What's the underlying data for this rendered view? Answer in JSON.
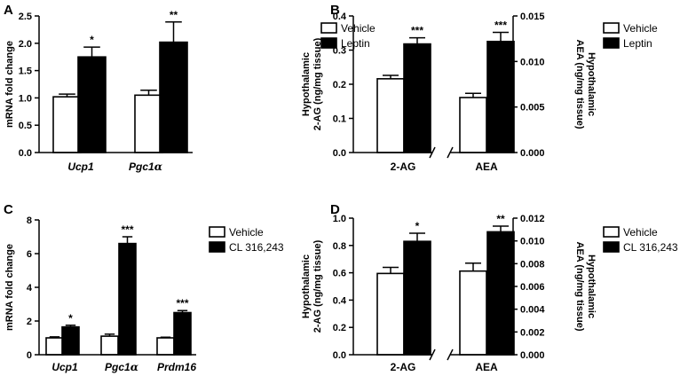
{
  "chart_data": [
    {
      "panel": "A",
      "type": "bar",
      "categories": [
        "Ucp1",
        "Pgc1α"
      ],
      "category_style": "bold-italic",
      "ylabel": "mRNA fold change",
      "ylim": [
        0,
        2.5
      ],
      "yticks": [
        "0.0",
        "0.5",
        "1.0",
        "1.5",
        "2.0",
        "2.5"
      ],
      "series": [
        {
          "name": "Vehicle",
          "fill": "white",
          "values": [
            1.02,
            1.05
          ],
          "errors": [
            0.05,
            0.09
          ]
        },
        {
          "name": "Leptin",
          "fill": "black",
          "values": [
            1.75,
            2.02
          ],
          "errors": [
            0.18,
            0.37
          ]
        }
      ],
      "significance": [
        "*",
        "**"
      ]
    },
    {
      "panel": "B",
      "type": "bar",
      "categories": [
        "2-AG",
        "AEA"
      ],
      "category_style": "bold",
      "ylabel": "Hypothalamic\n2-AG (ng/mg tissue)",
      "ylim": [
        0,
        0.4
      ],
      "yticks": [
        "0.0",
        "0.1",
        "0.2",
        "0.3",
        "0.4"
      ],
      "y2label": "Hypothalamic\nAEA (ng/mg tissue)",
      "y2lim": [
        0,
        0.015
      ],
      "y2ticks": [
        "0.000",
        "0.005",
        "0.010",
        "0.015"
      ],
      "axis_break": true,
      "series": [
        {
          "name": "Vehicle",
          "fill": "white",
          "values": [
            0.216,
            0.00604
          ],
          "errors": [
            0.01,
            0.00046
          ]
        },
        {
          "name": "Leptin",
          "fill": "black",
          "values": [
            0.318,
            0.0122
          ],
          "errors": [
            0.018,
            0.001
          ]
        }
      ],
      "value_axis": [
        "y",
        "y2"
      ],
      "significance": [
        "***",
        "***"
      ]
    },
    {
      "panel": "C",
      "type": "bar",
      "categories": [
        "Ucp1",
        "Pgc1α",
        "Prdm16"
      ],
      "category_style": "bold-italic",
      "ylabel": "mRNA fold change",
      "ylim": [
        0,
        8
      ],
      "yticks": [
        "0",
        "2",
        "4",
        "6",
        "8"
      ],
      "series": [
        {
          "name": "Vehicle",
          "fill": "white",
          "values": [
            1.0,
            1.1,
            1.0
          ],
          "errors": [
            0.06,
            0.12,
            0.04
          ]
        },
        {
          "name": "CL 316,243",
          "fill": "black",
          "values": [
            1.65,
            6.6,
            2.5
          ],
          "errors": [
            0.1,
            0.4,
            0.12
          ]
        }
      ],
      "significance": [
        "*",
        "***",
        "***"
      ]
    },
    {
      "panel": "D",
      "type": "bar",
      "categories": [
        "2-AG",
        "AEA"
      ],
      "category_style": "bold",
      "ylabel": "Hypothalamic\n2-AG (ng/mg tissue)",
      "ylim": [
        0,
        1.0
      ],
      "yticks": [
        "0.0",
        "0.2",
        "0.4",
        "0.6",
        "0.8",
        "1.0"
      ],
      "y2label": "Hypothalamic\nAEA (ng/mg tissue)",
      "y2lim": [
        0,
        0.012
      ],
      "y2ticks": [
        "0.000",
        "0.002",
        "0.004",
        "0.006",
        "0.008",
        "0.010",
        "0.012"
      ],
      "axis_break": true,
      "series": [
        {
          "name": "Vehicle",
          "fill": "white",
          "values": [
            0.595,
            0.00735
          ],
          "errors": [
            0.045,
            0.0007
          ]
        },
        {
          "name": "CL 316,243",
          "fill": "black",
          "values": [
            0.83,
            0.0108
          ],
          "errors": [
            0.06,
            0.0005
          ]
        }
      ],
      "value_axis": [
        "y",
        "y2"
      ],
      "significance": [
        "*",
        "**"
      ]
    }
  ]
}
